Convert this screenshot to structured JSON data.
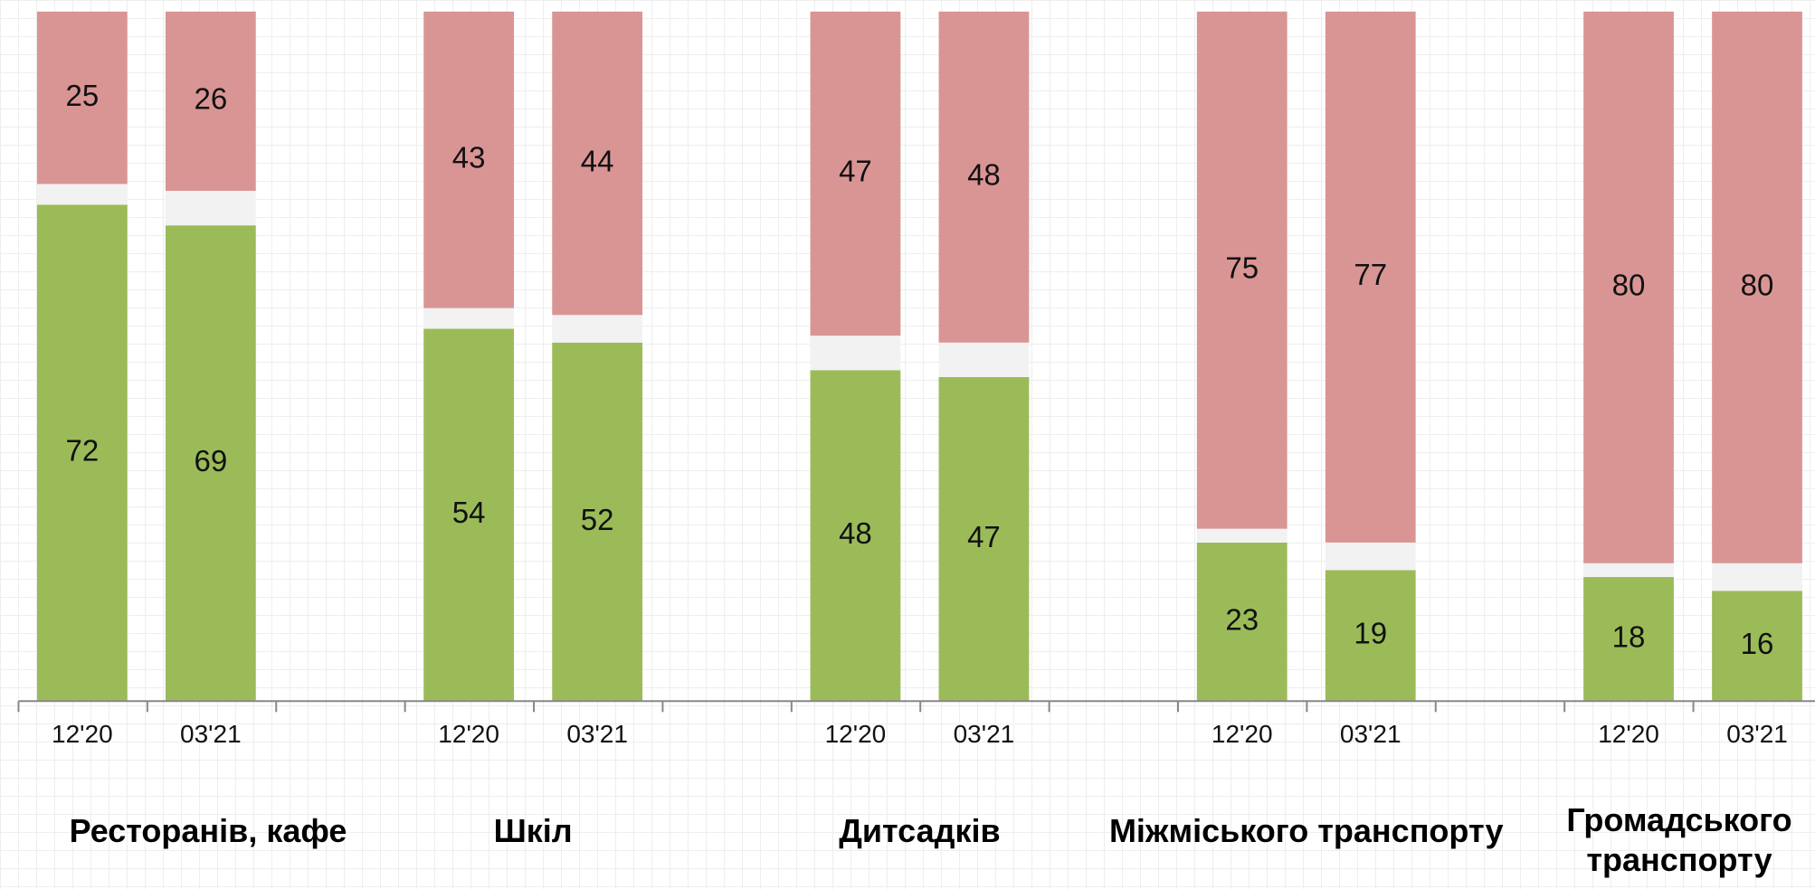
{
  "chart_data": {
    "type": "stacked_bar",
    "categories": [
      "12'20",
      "03'21",
      "12'20",
      "03'21",
      "12'20",
      "03'21",
      "12'20",
      "03'21",
      "12'20",
      "03'21"
    ],
    "groups": [
      "Ресторанів, кафе",
      "Шкіл",
      "Дитсадків",
      "Міжміського транспорту",
      "Громадського транспорту"
    ],
    "series": [
      {
        "color": "#9bbb59",
        "values": [
          72,
          69,
          54,
          52,
          48,
          47,
          23,
          19,
          18,
          16
        ],
        "labels": true
      },
      {
        "color": "#f2f2f2",
        "values": [
          3,
          5,
          3,
          4,
          5,
          5,
          2,
          4,
          2,
          4
        ],
        "labels": false
      },
      {
        "color": "#d99594",
        "values": [
          25,
          26,
          43,
          44,
          47,
          48,
          75,
          77,
          80,
          80
        ],
        "labels": true
      }
    ],
    "ylim": [
      0,
      100
    ]
  }
}
